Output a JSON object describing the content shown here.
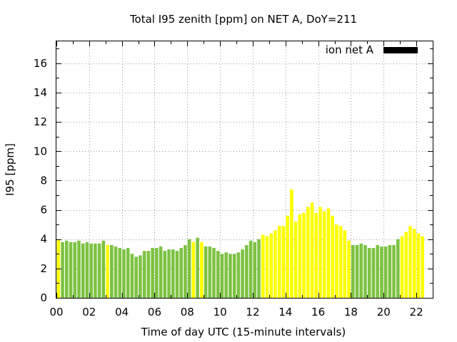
{
  "chart_data": {
    "type": "bar",
    "title": "Total I95 zenith [ppm] on NET A, DoY=211",
    "xlabel": "Time of day UTC (15-minute intervals)",
    "ylabel": "I95 [ppm]",
    "legend": {
      "label": "ion net A",
      "color": "#000000",
      "position": "top-right"
    },
    "xlim": [
      0,
      23
    ],
    "ylim": [
      0,
      17.5
    ],
    "x_ticks": [
      "00",
      "02",
      "04",
      "06",
      "08",
      "10",
      "12",
      "14",
      "16",
      "18",
      "20",
      "22"
    ],
    "y_ticks": [
      0,
      2,
      4,
      6,
      8,
      10,
      12,
      14,
      16
    ],
    "grid": true,
    "interval_hours": 0.25,
    "colors": {
      "green": "#7cc242",
      "yellow": "#ffff00"
    },
    "values": [
      4.0,
      3.8,
      3.9,
      3.8,
      3.8,
      3.9,
      3.7,
      3.8,
      3.7,
      3.7,
      3.7,
      3.9,
      3.6,
      3.6,
      3.5,
      3.4,
      3.3,
      3.4,
      3.0,
      2.8,
      2.9,
      3.2,
      3.2,
      3.4,
      3.4,
      3.5,
      3.2,
      3.3,
      3.3,
      3.2,
      3.4,
      3.6,
      4.0,
      3.8,
      4.1,
      3.8,
      3.5,
      3.5,
      3.4,
      3.2,
      3.0,
      3.1,
      3.0,
      3.0,
      3.1,
      3.3,
      3.6,
      3.9,
      3.8,
      4.0,
      4.3,
      4.2,
      4.4,
      4.6,
      4.9,
      4.9,
      5.6,
      7.4,
      5.2,
      5.7,
      5.8,
      6.2,
      6.5,
      5.8,
      6.2,
      5.9,
      6.1,
      5.6,
      5.0,
      4.9,
      4.6,
      3.9,
      3.6,
      3.6,
      3.7,
      3.6,
      3.4,
      3.4,
      3.6,
      3.5,
      3.5,
      3.6,
      3.6,
      4.0,
      4.2,
      4.5,
      4.9,
      4.7,
      4.4,
      4.2
    ],
    "bar_colors": [
      "yellow",
      "green",
      "green",
      "green",
      "green",
      "green",
      "green",
      "green",
      "green",
      "green",
      "green",
      "green",
      "yellow",
      "green",
      "green",
      "green",
      "green",
      "green",
      "green",
      "green",
      "green",
      "green",
      "green",
      "green",
      "green",
      "green",
      "green",
      "green",
      "green",
      "green",
      "green",
      "green",
      "green",
      "yellow",
      "green",
      "yellow",
      "green",
      "green",
      "green",
      "green",
      "green",
      "green",
      "green",
      "green",
      "green",
      "green",
      "green",
      "green",
      "green",
      "green",
      "yellow",
      "yellow",
      "yellow",
      "yellow",
      "yellow",
      "yellow",
      "yellow",
      "yellow",
      "yellow",
      "yellow",
      "yellow",
      "yellow",
      "yellow",
      "yellow",
      "yellow",
      "yellow",
      "yellow",
      "yellow",
      "yellow",
      "yellow",
      "yellow",
      "yellow",
      "green",
      "green",
      "green",
      "green",
      "green",
      "green",
      "green",
      "green",
      "green",
      "green",
      "green",
      "green",
      "yellow",
      "yellow",
      "yellow",
      "yellow",
      "yellow",
      "yellow"
    ]
  }
}
